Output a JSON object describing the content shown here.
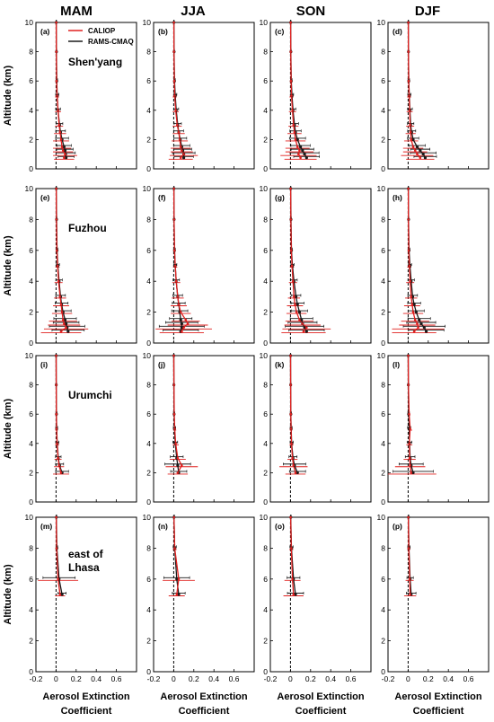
{
  "figure": {
    "seasons": [
      "MAM",
      "JJA",
      "SON",
      "DJF"
    ],
    "ylabel": "Altitude (km)",
    "xlabel_line1": "Aerosol Extinction",
    "xlabel_line2": "Coefficient",
    "legend": [
      {
        "label": "CALIOP",
        "color": "#e0201f"
      },
      {
        "label": "RAMS-CMAQ",
        "color": "#1a1a1a"
      }
    ]
  },
  "chart_data": {
    "type": "line",
    "xlim": [
      -0.2,
      0.8
    ],
    "ylim": [
      0,
      10
    ],
    "xticks": [
      "-0.2",
      "0",
      "0.2",
      "0.4",
      "0.6"
    ],
    "yticks": [
      "0",
      "2",
      "4",
      "6",
      "8",
      "10"
    ],
    "rows": [
      {
        "city": "Shen'yang",
        "panels": [
          "(a)",
          "(b)",
          "(c)",
          "(d)"
        ]
      },
      {
        "city": "Fuzhou",
        "panels": [
          "(e)",
          "(f)",
          "(g)",
          "(h)"
        ]
      },
      {
        "city": "Urumchi",
        "panels": [
          "(i)",
          "(j)",
          "(k)",
          "(l)"
        ]
      },
      {
        "city": "east of|Lhasa",
        "panels": [
          "(m)",
          "(n)",
          "(o)",
          "(p)"
        ]
      }
    ],
    "alt": [
      0.75,
      1.0,
      1.25,
      1.5,
      2.0,
      2.5,
      3.0,
      4.0,
      5.0,
      6.0,
      8.0,
      10.0
    ],
    "profiles": [
      [
        {
          "caliop": [
            0.08,
            0.09,
            0.07,
            0.06,
            0.05,
            0.04,
            0.03,
            0.02,
            0.01,
            0.005,
            0.003,
            0.002
          ],
          "rams": [
            0.1,
            0.095,
            0.09,
            0.08,
            0.06,
            0.045,
            0.035,
            0.02,
            0.012,
            0.007,
            0.004,
            0.002
          ],
          "err": [
            0.1,
            0.12,
            0.1,
            0.09,
            0.08,
            0.06,
            0.04,
            0.03,
            0.02,
            0.01,
            0.005,
            0.003
          ]
        },
        {
          "caliop": [
            0.07,
            0.1,
            0.08,
            0.07,
            0.06,
            0.05,
            0.035,
            0.02,
            0.01,
            0.006,
            0.003,
            0.002
          ],
          "rams": [
            0.1,
            0.1,
            0.09,
            0.08,
            0.065,
            0.05,
            0.04,
            0.025,
            0.015,
            0.008,
            0.004,
            0.002
          ],
          "err": [
            0.12,
            0.14,
            0.11,
            0.1,
            0.08,
            0.06,
            0.045,
            0.03,
            0.02,
            0.01,
            0.005,
            0.003
          ]
        },
        {
          "caliop": [
            0.1,
            0.08,
            0.09,
            0.07,
            0.05,
            0.04,
            0.03,
            0.02,
            0.01,
            0.006,
            0.003,
            0.002
          ],
          "rams": [
            0.16,
            0.14,
            0.12,
            0.1,
            0.07,
            0.05,
            0.04,
            0.025,
            0.015,
            0.008,
            0.004,
            0.002
          ],
          "err": [
            0.16,
            0.18,
            0.14,
            0.12,
            0.1,
            0.07,
            0.05,
            0.035,
            0.02,
            0.01,
            0.005,
            0.003
          ]
        },
        {
          "caliop": [
            0.12,
            0.09,
            0.07,
            0.05,
            0.03,
            0.025,
            0.02,
            0.015,
            0.01,
            0.005,
            0.003,
            0.002
          ],
          "rams": [
            0.17,
            0.15,
            0.12,
            0.09,
            0.05,
            0.035,
            0.025,
            0.018,
            0.012,
            0.006,
            0.003,
            0.002
          ],
          "err": [
            0.14,
            0.16,
            0.12,
            0.1,
            0.07,
            0.05,
            0.04,
            0.03,
            0.02,
            0.01,
            0.005,
            0.003
          ]
        }
      ],
      [
        {
          "caliop": [
            0.05,
            0.1,
            0.08,
            0.07,
            0.06,
            0.05,
            0.04,
            0.025,
            0.015,
            0.008,
            0.004,
            0.002
          ],
          "rams": [
            0.12,
            0.11,
            0.1,
            0.09,
            0.07,
            0.055,
            0.045,
            0.03,
            0.018,
            0.01,
            0.005,
            0.002
          ],
          "err": [
            0.2,
            0.22,
            0.16,
            0.14,
            0.1,
            0.08,
            0.06,
            0.04,
            0.02,
            0.01,
            0.005,
            0.003
          ]
        },
        {
          "caliop": [
            0.08,
            0.1,
            0.14,
            0.12,
            0.07,
            0.05,
            0.04,
            0.025,
            0.015,
            0.008,
            0.004,
            0.002
          ],
          "rams": [
            0.07,
            0.08,
            0.08,
            0.07,
            0.06,
            0.05,
            0.04,
            0.025,
            0.015,
            0.008,
            0.004,
            0.002
          ],
          "err": [
            0.22,
            0.28,
            0.2,
            0.14,
            0.1,
            0.08,
            0.06,
            0.04,
            0.02,
            0.01,
            0.005,
            0.003
          ]
        },
        {
          "caliop": [
            0.13,
            0.16,
            0.12,
            0.09,
            0.06,
            0.045,
            0.035,
            0.025,
            0.015,
            0.008,
            0.004,
            0.002
          ],
          "rams": [
            0.16,
            0.14,
            0.12,
            0.11,
            0.09,
            0.07,
            0.055,
            0.035,
            0.02,
            0.01,
            0.005,
            0.002
          ],
          "err": [
            0.22,
            0.24,
            0.18,
            0.14,
            0.1,
            0.08,
            0.06,
            0.04,
            0.02,
            0.01,
            0.005,
            0.003
          ]
        },
        {
          "caliop": [
            0.06,
            0.1,
            0.09,
            0.07,
            0.05,
            0.04,
            0.03,
            0.02,
            0.012,
            0.006,
            0.003,
            0.002
          ],
          "rams": [
            0.18,
            0.16,
            0.13,
            0.11,
            0.08,
            0.06,
            0.045,
            0.03,
            0.018,
            0.009,
            0.004,
            0.002
          ],
          "err": [
            0.22,
            0.26,
            0.18,
            0.14,
            0.1,
            0.08,
            0.06,
            0.04,
            0.02,
            0.01,
            0.005,
            0.003
          ]
        }
      ],
      [
        {
          "caliop": [
            null,
            null,
            null,
            null,
            0.05,
            0.03,
            0.02,
            0.01,
            0.005,
            0.003,
            0.002,
            0.001
          ],
          "rams": [
            null,
            null,
            null,
            null,
            0.06,
            0.035,
            0.022,
            0.012,
            0.006,
            0.004,
            0.002,
            0.001
          ],
          "err": [
            null,
            null,
            null,
            null,
            0.08,
            0.05,
            0.035,
            0.02,
            0.012,
            0.008,
            0.004,
            0.002
          ]
        },
        {
          "caliop": [
            null,
            null,
            null,
            null,
            0.04,
            0.08,
            0.04,
            0.02,
            0.01,
            0.005,
            0.003,
            0.001
          ],
          "rams": [
            null,
            null,
            null,
            null,
            0.05,
            0.04,
            0.03,
            0.015,
            0.008,
            0.004,
            0.002,
            0.001
          ],
          "err": [
            null,
            null,
            null,
            null,
            0.1,
            0.16,
            0.08,
            0.03,
            0.015,
            0.008,
            0.004,
            0.002
          ]
        },
        {
          "caliop": [
            null,
            null,
            null,
            null,
            0.05,
            0.03,
            0.02,
            0.01,
            0.006,
            0.003,
            0.002,
            0.001
          ],
          "rams": [
            null,
            null,
            null,
            null,
            0.07,
            0.04,
            0.025,
            0.012,
            0.007,
            0.004,
            0.002,
            0.001
          ],
          "err": [
            null,
            null,
            null,
            null,
            0.1,
            0.14,
            0.05,
            0.02,
            0.012,
            0.008,
            0.004,
            0.002
          ]
        },
        {
          "caliop": [
            null,
            null,
            null,
            null,
            0.03,
            0.02,
            0.015,
            0.012,
            0.02,
            0.01,
            0.003,
            0.001
          ],
          "rams": [
            null,
            null,
            null,
            null,
            0.05,
            0.03,
            0.02,
            0.014,
            0.01,
            0.005,
            0.002,
            0.001
          ],
          "err": [
            null,
            null,
            null,
            null,
            0.25,
            0.15,
            0.06,
            0.03,
            0.02,
            0.01,
            0.004,
            0.002
          ]
        }
      ],
      [
        {
          "caliop": [
            null,
            null,
            null,
            null,
            null,
            null,
            null,
            null,
            0.04,
            0.02,
            0.005,
            0.002
          ],
          "rams": [
            null,
            null,
            null,
            null,
            null,
            null,
            null,
            null,
            0.06,
            0.03,
            0.008,
            0.003
          ],
          "err": [
            null,
            null,
            null,
            null,
            null,
            null,
            null,
            null,
            0.05,
            0.2,
            0.01,
            0.004
          ]
        },
        {
          "caliop": [
            null,
            null,
            null,
            null,
            null,
            null,
            null,
            null,
            0.03,
            0.05,
            0.01,
            0.003
          ],
          "rams": [
            null,
            null,
            null,
            null,
            null,
            null,
            null,
            null,
            0.05,
            0.03,
            0.01,
            0.003
          ],
          "err": [
            null,
            null,
            null,
            null,
            null,
            null,
            null,
            null,
            0.08,
            0.16,
            0.02,
            0.005
          ]
        },
        {
          "caliop": [
            null,
            null,
            null,
            null,
            null,
            null,
            null,
            null,
            0.03,
            0.02,
            0.008,
            0.002
          ],
          "rams": [
            null,
            null,
            null,
            null,
            null,
            null,
            null,
            null,
            0.05,
            0.03,
            0.01,
            0.003
          ],
          "err": [
            null,
            null,
            null,
            null,
            null,
            null,
            null,
            null,
            0.1,
            0.08,
            0.02,
            0.004
          ]
        },
        {
          "caliop": [
            null,
            null,
            null,
            null,
            null,
            null,
            null,
            null,
            0.02,
            0.015,
            0.006,
            0.002
          ],
          "rams": [
            null,
            null,
            null,
            null,
            null,
            null,
            null,
            null,
            0.03,
            0.02,
            0.008,
            0.003
          ],
          "err": [
            null,
            null,
            null,
            null,
            null,
            null,
            null,
            null,
            0.06,
            0.04,
            0.015,
            0.004
          ]
        }
      ]
    ]
  }
}
